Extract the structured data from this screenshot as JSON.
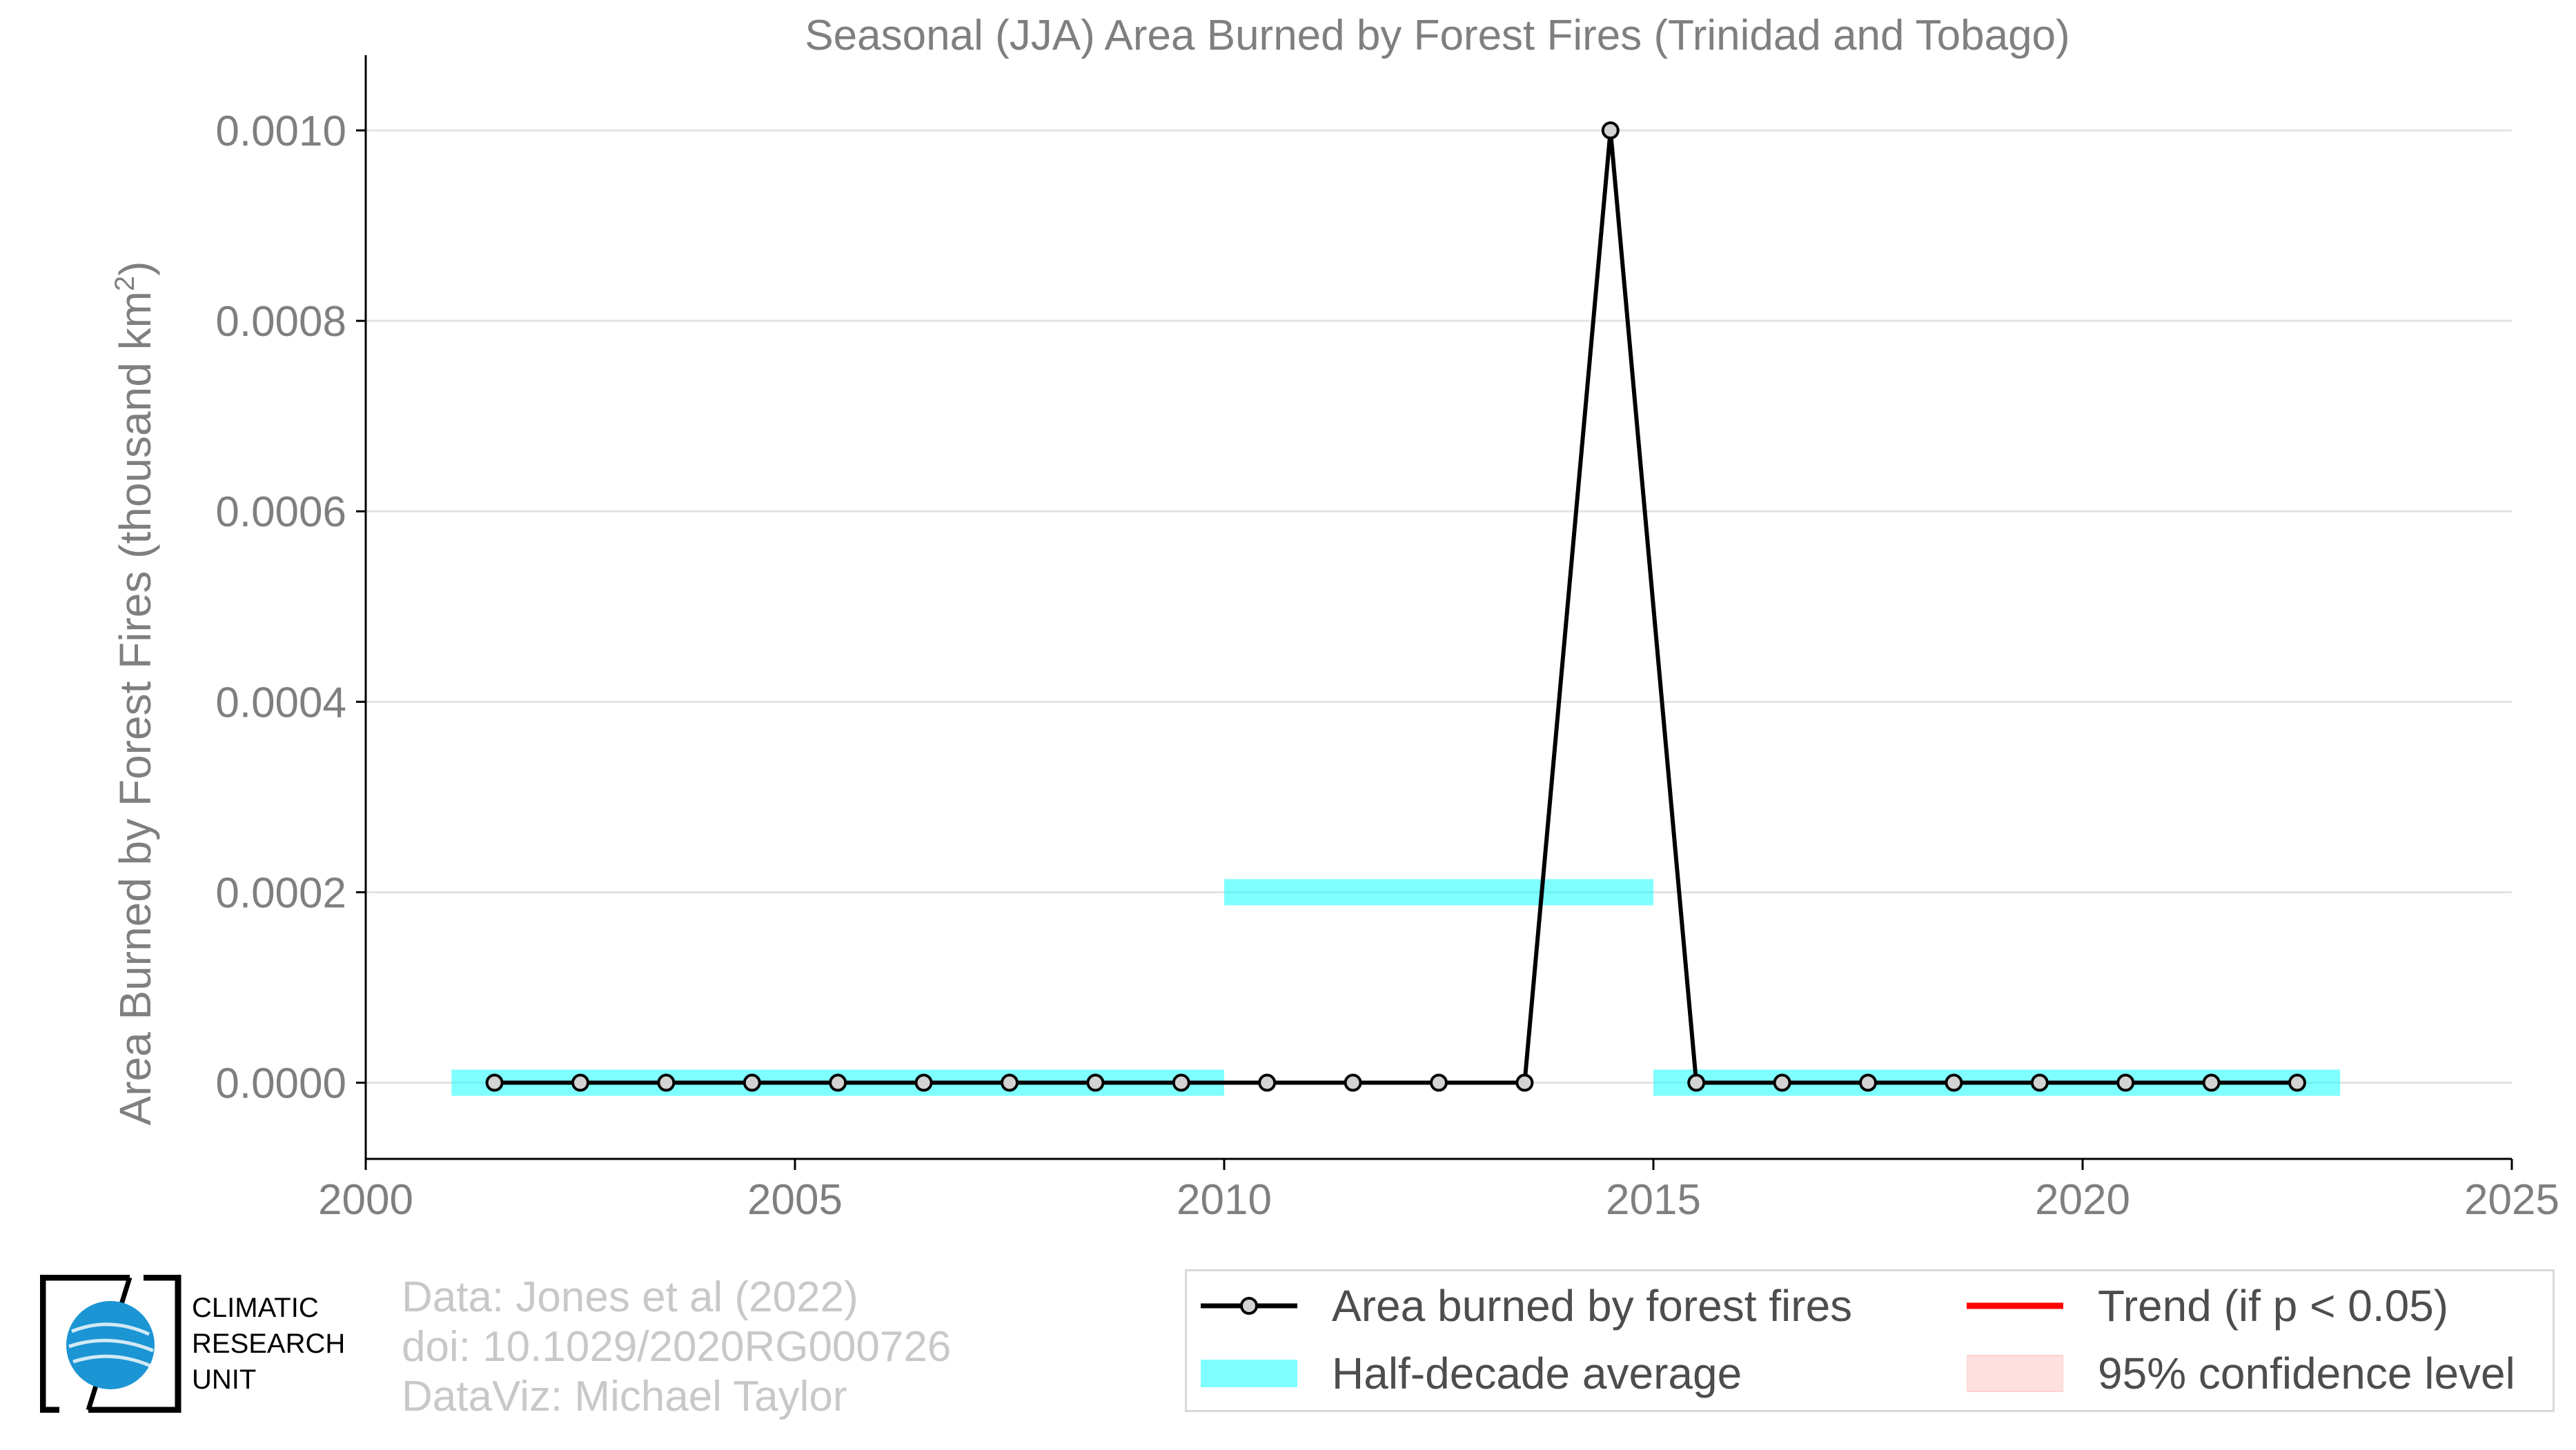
{
  "chart_data": {
    "type": "line",
    "title": "Seasonal (JJA) Area Burned by Forest Fires (Trinidad and Tobago)",
    "ylabel_main": "Area Burned by Forest Fires (thousand km",
    "ylabel_sup": "2",
    "ylabel_end": ")",
    "xlim": [
      2000,
      2025
    ],
    "ylim": [
      -8e-05,
      0.00105
    ],
    "x_ticks": [
      2000,
      2005,
      2010,
      2015,
      2020,
      2025
    ],
    "y_ticks": [
      0.0,
      0.0002,
      0.0004,
      0.0006,
      0.0008,
      0.001
    ],
    "y_tick_labels": [
      "0.0000",
      "0.0002",
      "0.0004",
      "0.0006",
      "0.0008",
      "0.0010"
    ],
    "grid": true,
    "series": [
      {
        "name": "Area burned by forest fires",
        "color": "#000000",
        "marker_fill": "#d3d3d3",
        "x": [
          2001.5,
          2002.5,
          2003.5,
          2004.5,
          2005.5,
          2006.5,
          2007.5,
          2008.5,
          2009.5,
          2010.5,
          2011.5,
          2012.5,
          2013.5,
          2014.5,
          2015.5,
          2016.5,
          2017.5,
          2018.5,
          2019.5,
          2020.5,
          2021.5,
          2022.5
        ],
        "values": [
          0,
          0,
          0,
          0,
          0,
          0,
          0,
          0,
          0,
          0,
          0,
          0,
          0,
          0.001,
          0,
          0,
          0,
          0,
          0,
          0,
          0,
          0
        ]
      },
      {
        "name": "Half-decade average",
        "color": "#00ffff",
        "segments": [
          {
            "x0": 2001,
            "x1": 2010,
            "value": 0.0
          },
          {
            "x0": 2010,
            "x1": 2015,
            "value": 0.0002
          },
          {
            "x0": 2015,
            "x1": 2023,
            "value": 0.0
          }
        ]
      }
    ],
    "legend": {
      "placement": "bottom-right",
      "items": [
        {
          "label": "Area burned by forest fires",
          "kind": "line-marker",
          "color": "#000000"
        },
        {
          "label": "Trend (if p < 0.05)",
          "kind": "line",
          "color": "#ff0000"
        },
        {
          "label": "Half-decade average",
          "kind": "band",
          "color": "#00ffff"
        },
        {
          "label": "95% confidence level",
          "kind": "band",
          "color": "#ffcccc"
        }
      ]
    }
  },
  "credits": {
    "line1": "Data: Jones et al (2022)",
    "line2": "doi: 10.1029/2020RG000726",
    "line3": "DataViz: Michael Taylor"
  },
  "logo": {
    "line1": "CLIMATIC",
    "line2": "RESEARCH",
    "line3": "UNIT",
    "globe_color": "#1b95d3"
  }
}
